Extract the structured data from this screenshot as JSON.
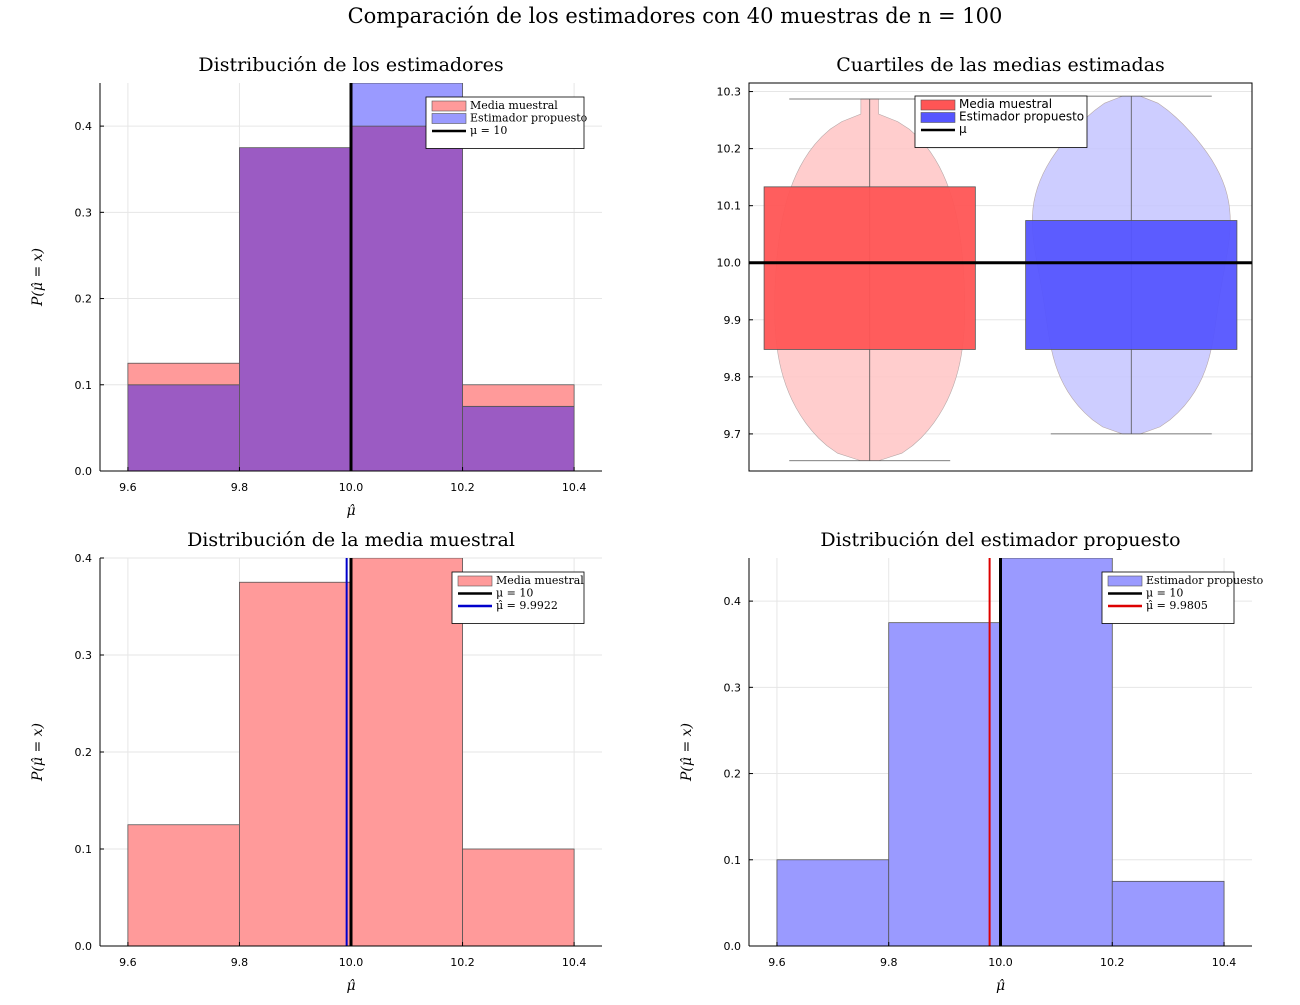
{
  "figure": {
    "suptitle": "Comparación de los estimadores con 40 muestras de n = 100"
  },
  "chart_data": [
    {
      "type": "bar",
      "title": "Distribución de los estimadores",
      "xlabel": "μ̂",
      "ylabel": "P(μ̂ = x)",
      "bin_edges": [
        9.6,
        9.8,
        10.0,
        10.2,
        10.4
      ],
      "series": [
        {
          "name": "Media muestral",
          "values": [
            0.125,
            0.375,
            0.4,
            0.1
          ],
          "color": "#ff9a9a"
        },
        {
          "name": "Estimador propuesto",
          "values": [
            0.1,
            0.375,
            0.45,
            0.075
          ],
          "color": "#9a9aff"
        }
      ],
      "overlap_color": "#9b5bc3",
      "vlines": [
        {
          "name": "μ = 10",
          "x": 10.0,
          "color": "#000000"
        }
      ],
      "xlim": [
        9.55,
        10.45
      ],
      "ylim": [
        0,
        0.45
      ],
      "xticks": [
        "9.6",
        "9.8",
        "10.0",
        "10.2",
        "10.4"
      ],
      "yticks": [
        "0.0",
        "0.1",
        "0.2",
        "0.3",
        "0.4"
      ],
      "grid": true,
      "legend": "top-right"
    },
    {
      "type": "violin",
      "title": "Cuartiles de las medias estimadas",
      "categories": [
        "Media muestral",
        "Estimador propuesto"
      ],
      "series": [
        {
          "name": "Media muestral",
          "min": 9.653,
          "q1": 9.848,
          "median": 10.0,
          "q3": 10.133,
          "max": 10.287,
          "color": "#ff5555",
          "violin_color": "#ffc8c8"
        },
        {
          "name": "Estimador propuesto",
          "min": 9.7,
          "q1": 9.848,
          "median": 10.0,
          "q3": 10.074,
          "max": 10.292,
          "color": "#5555ff",
          "violin_color": "#c8c8ff"
        }
      ],
      "hline": {
        "name": "μ",
        "y": 10.0,
        "color": "#000000"
      },
      "ylim": [
        9.635,
        10.315
      ],
      "yticks": [
        "9.7",
        "9.8",
        "9.9",
        "10.0",
        "10.1",
        "10.2",
        "10.3"
      ],
      "grid": true,
      "legend": "top-center"
    },
    {
      "type": "bar",
      "title": "Distribución de la media muestral",
      "xlabel": "μ̂",
      "ylabel": "P(μ̂ = x)",
      "bin_edges": [
        9.6,
        9.8,
        10.0,
        10.2,
        10.4
      ],
      "series": [
        {
          "name": "Media muestral",
          "values": [
            0.125,
            0.375,
            0.4,
            0.1
          ],
          "color": "#ff9a9a"
        }
      ],
      "vlines": [
        {
          "name": "μ = 10",
          "x": 10.0,
          "color": "#000000"
        },
        {
          "name": "μ̂ = 9.9922",
          "x": 9.9922,
          "color": "#0000cc"
        }
      ],
      "xlim": [
        9.55,
        10.45
      ],
      "ylim": [
        0,
        0.4
      ],
      "xticks": [
        "9.6",
        "9.8",
        "10.0",
        "10.2",
        "10.4"
      ],
      "yticks": [
        "0.0",
        "0.1",
        "0.2",
        "0.3",
        "0.4"
      ],
      "grid": true,
      "legend": "top-right"
    },
    {
      "type": "bar",
      "title": "Distribución del estimador propuesto",
      "xlabel": "μ̂",
      "ylabel": "P(μ̂ = x)",
      "bin_edges": [
        9.6,
        9.8,
        10.0,
        10.2,
        10.4
      ],
      "series": [
        {
          "name": "Estimador propuesto",
          "values": [
            0.1,
            0.375,
            0.45,
            0.075
          ],
          "color": "#9a9aff"
        }
      ],
      "vlines": [
        {
          "name": "μ = 10",
          "x": 10.0,
          "color": "#000000"
        },
        {
          "name": "μ̂ = 9.9805",
          "x": 9.9805,
          "color": "#dd0000"
        }
      ],
      "xlim": [
        9.55,
        10.45
      ],
      "ylim": [
        0,
        0.45
      ],
      "xticks": [
        "9.6",
        "9.8",
        "10.0",
        "10.2",
        "10.4"
      ],
      "yticks": [
        "0.0",
        "0.1",
        "0.2",
        "0.3",
        "0.4"
      ],
      "grid": true,
      "legend": "top-right"
    }
  ]
}
